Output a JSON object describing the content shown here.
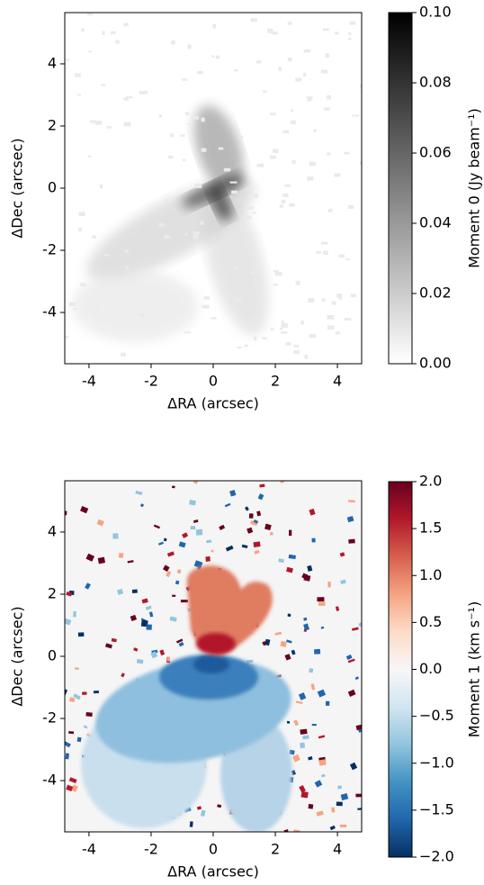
{
  "chart_data": [
    {
      "type": "image",
      "xlabel": "ΔRA (arcsec)",
      "ylabel": "ΔDec (arcsec)",
      "xlim": [
        -4.78,
        4.78
      ],
      "ylim": [
        -5.65,
        5.65
      ],
      "xticks": [
        -4,
        -2,
        0,
        2,
        4
      ],
      "yticks": [
        -4,
        -2,
        0,
        2,
        4
      ],
      "colorbar": {
        "label": "Moment 0 (Jy beam⁻¹)",
        "lim": [
          0,
          0.1
        ],
        "ticks": [
          {
            "value": 0,
            "label": "0.00"
          },
          {
            "value": 0.02,
            "label": "0.02"
          },
          {
            "value": 0.04,
            "label": "0.04"
          },
          {
            "value": 0.06,
            "label": "0.06"
          },
          {
            "value": 0.08,
            "label": "0.08"
          },
          {
            "value": 0.1,
            "label": "0.10"
          }
        ],
        "colors": [
          "#ffffff",
          "#000000"
        ]
      }
    },
    {
      "type": "image",
      "xlabel": "ΔRA (arcsec)",
      "ylabel": "ΔDec (arcsec)",
      "xlim": [
        -4.78,
        4.78
      ],
      "ylim": [
        -5.65,
        5.65
      ],
      "xticks": [
        -4,
        -2,
        0,
        2,
        4
      ],
      "yticks": [
        -4,
        -2,
        0,
        2,
        4
      ],
      "colorbar": {
        "label": "Moment 1 (km s⁻¹)",
        "lim": [
          -2,
          2
        ],
        "ticks": [
          {
            "value": -2,
            "label": "−2.0"
          },
          {
            "value": -1.5,
            "label": "−1.5"
          },
          {
            "value": -1,
            "label": "−1.0"
          },
          {
            "value": -0.5,
            "label": "−0.5"
          },
          {
            "value": 0,
            "label": "0.0"
          },
          {
            "value": 0.5,
            "label": "0.5"
          },
          {
            "value": 1,
            "label": "1.0"
          },
          {
            "value": 1.5,
            "label": "1.5"
          },
          {
            "value": 2,
            "label": "2.0"
          }
        ],
        "colors": [
          "#053061",
          "#2166ac",
          "#4393c3",
          "#92c5de",
          "#d1e5f0",
          "#f7f7f7",
          "#fddbc7",
          "#f4a582",
          "#d6604d",
          "#b2182b",
          "#67001f"
        ]
      }
    }
  ]
}
